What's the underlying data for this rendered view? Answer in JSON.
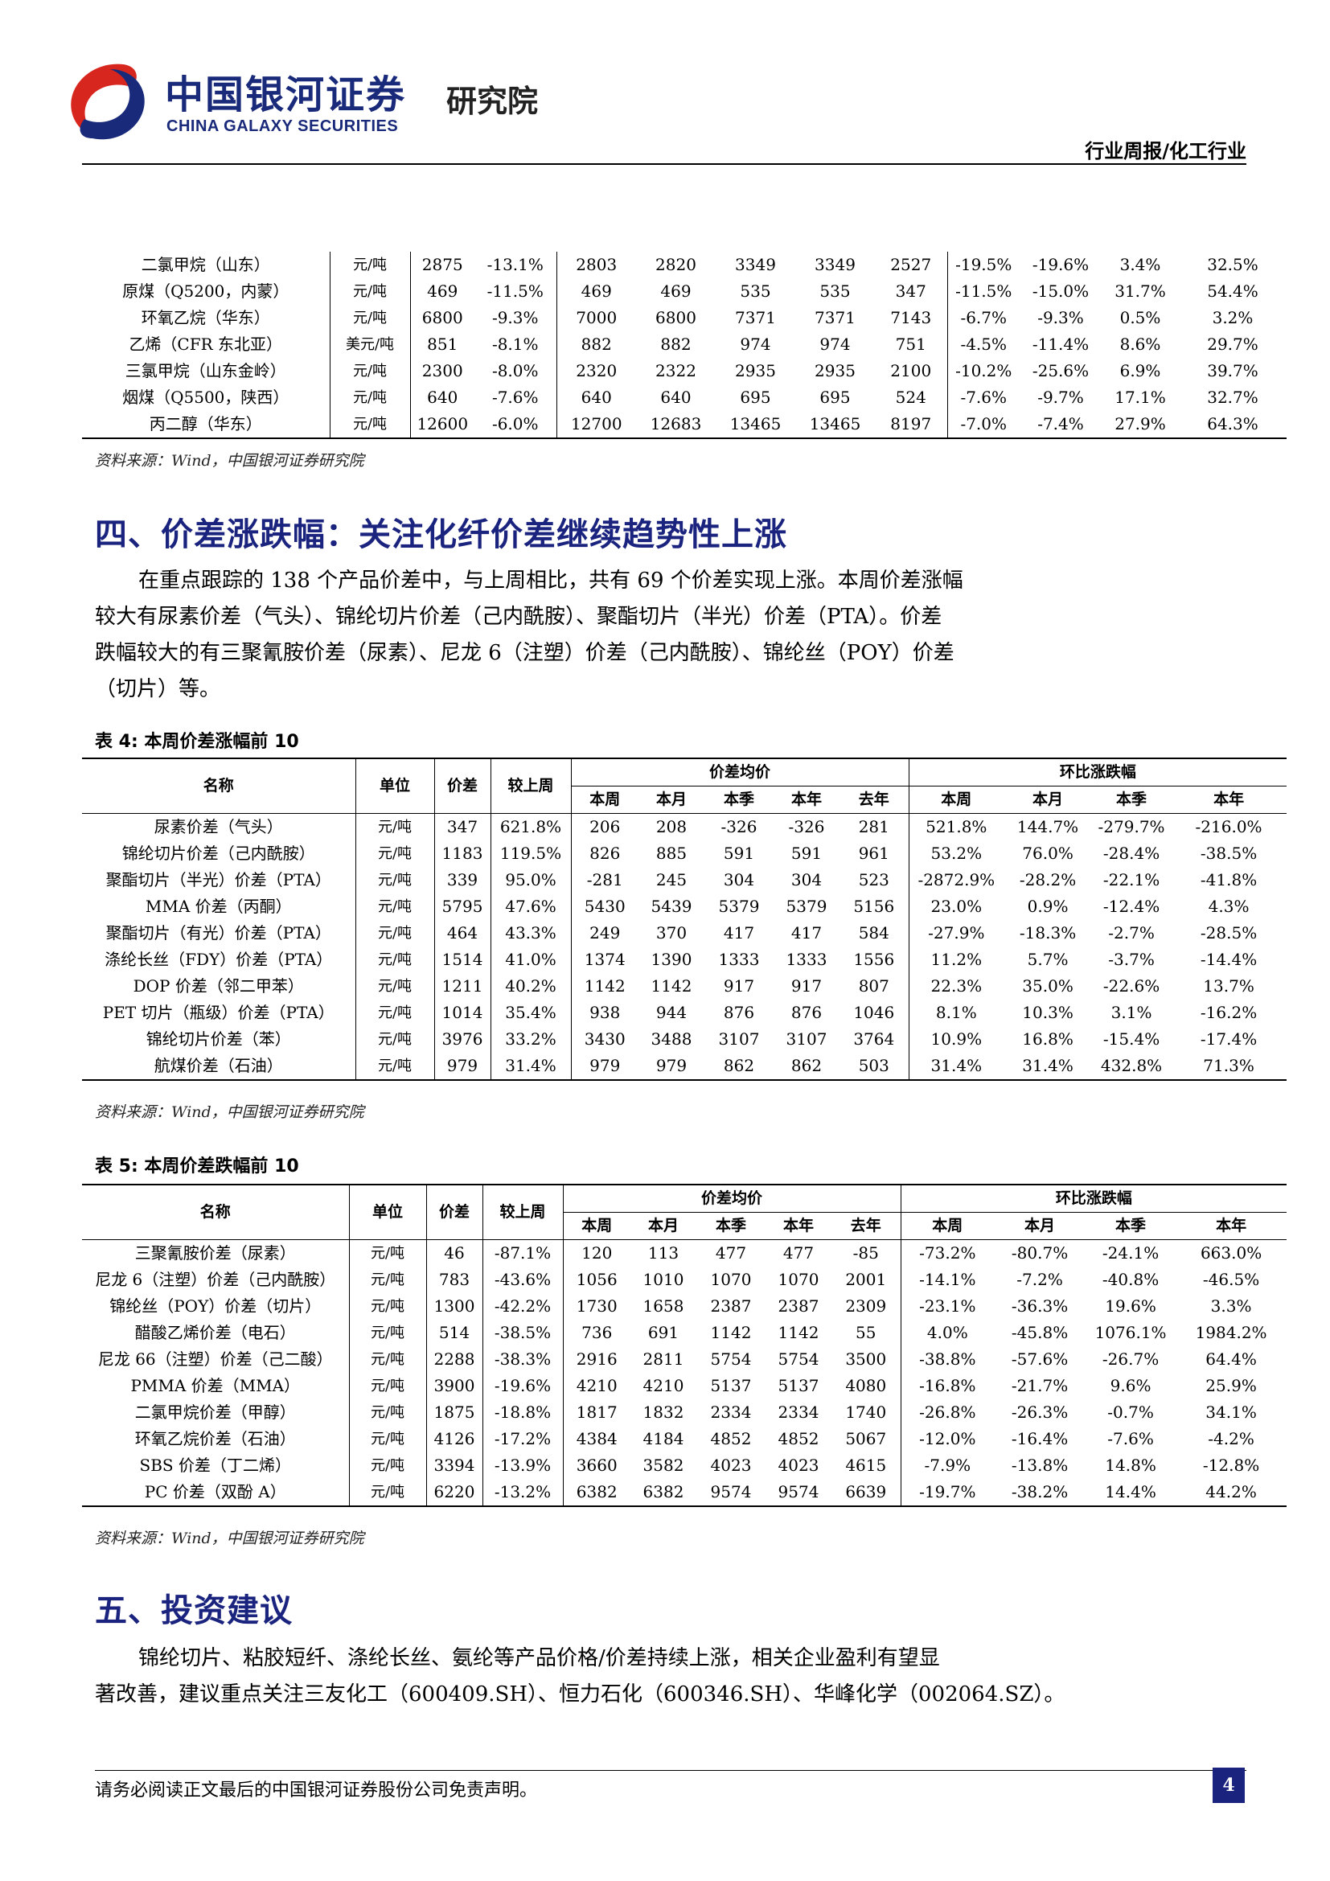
{
  "header": {
    "logo_cn": "中国银河证券",
    "logo_en": "CHINA GALAXY SECURITIES",
    "logo_institute": "研究院",
    "report_tag": "行业周报/化工行业"
  },
  "colors": {
    "brand_blue": "#1a237e",
    "logo_red": "#d7261e"
  },
  "table_top": {
    "rows": [
      [
        "二氯甲烷（山东）",
        "元/吨",
        "2875",
        "-13.1%",
        "2803",
        "2820",
        "3349",
        "3349",
        "2527",
        "-19.5%",
        "-19.6%",
        "3.4%",
        "32.5%"
      ],
      [
        "原煤（Q5200，内蒙）",
        "元/吨",
        "469",
        "-11.5%",
        "469",
        "469",
        "535",
        "535",
        "347",
        "-11.5%",
        "-15.0%",
        "31.7%",
        "54.4%"
      ],
      [
        "环氧乙烷（华东）",
        "元/吨",
        "6800",
        "-9.3%",
        "7000",
        "6800",
        "7371",
        "7371",
        "7143",
        "-6.7%",
        "-9.3%",
        "0.5%",
        "3.2%"
      ],
      [
        "乙烯（CFR 东北亚）",
        "美元/吨",
        "851",
        "-8.1%",
        "882",
        "882",
        "974",
        "974",
        "751",
        "-4.5%",
        "-11.4%",
        "8.6%",
        "29.7%"
      ],
      [
        "三氯甲烷（山东金岭）",
        "元/吨",
        "2300",
        "-8.0%",
        "2320",
        "2322",
        "2935",
        "2935",
        "2100",
        "-10.2%",
        "-25.6%",
        "6.9%",
        "39.7%"
      ],
      [
        "烟煤（Q5500，陕西）",
        "元/吨",
        "640",
        "-7.6%",
        "640",
        "640",
        "695",
        "695",
        "524",
        "-7.6%",
        "-9.7%",
        "17.1%",
        "32.7%"
      ],
      [
        "丙二醇（华东）",
        "元/吨",
        "12600",
        "-6.0%",
        "12700",
        "12683",
        "13465",
        "13465",
        "8197",
        "-7.0%",
        "-7.4%",
        "27.9%",
        "64.3%"
      ]
    ],
    "source": "资料来源：Wind，中国银河证券研究院"
  },
  "section4": {
    "title": "四、价差涨跌幅：关注化纤价差继续趋势性上涨",
    "para_lines": [
      "在重点跟踪的 138 个产品价差中，与上周相比，共有 69 个价差实现上涨。本周价差涨幅",
      "较大有尿素价差（气头）、锦纶切片价差（己内酰胺）、聚酯切片（半光）价差（PTA）。价差",
      "跌幅较大的有三聚氰胺价差（尿素）、尼龙 6（注塑）价差（己内酰胺）、锦纶丝（POY）价差",
      "（切片）等。"
    ]
  },
  "table4": {
    "caption": "表 4:  本周价差涨幅前 10",
    "headers": {
      "name": "名称",
      "unit": "单位",
      "spread": "价差",
      "vs_last_week": "较上周",
      "group_avg": "价差均价",
      "group_change": "环比涨跌幅",
      "avg_sub": [
        "本周",
        "本月",
        "本季",
        "本年",
        "去年"
      ],
      "chg_sub": [
        "本周",
        "本月",
        "本季",
        "本年"
      ]
    },
    "rows": [
      [
        "尿素价差（气头）",
        "元/吨",
        "347",
        "621.8%",
        "206",
        "208",
        "-326",
        "-326",
        "281",
        "521.8%",
        "144.7%",
        "-279.7%",
        "-216.0%"
      ],
      [
        "锦纶切片价差（己内酰胺）",
        "元/吨",
        "1183",
        "119.5%",
        "826",
        "885",
        "591",
        "591",
        "961",
        "53.2%",
        "76.0%",
        "-28.4%",
        "-38.5%"
      ],
      [
        "聚酯切片（半光）价差（PTA）",
        "元/吨",
        "339",
        "95.0%",
        "-281",
        "245",
        "304",
        "304",
        "523",
        "-2872.9%",
        "-28.2%",
        "-22.1%",
        "-41.8%"
      ],
      [
        "MMA 价差（丙酮）",
        "元/吨",
        "5795",
        "47.6%",
        "5430",
        "5439",
        "5379",
        "5379",
        "5156",
        "23.0%",
        "0.9%",
        "-12.4%",
        "4.3%"
      ],
      [
        "聚酯切片（有光）价差（PTA）",
        "元/吨",
        "464",
        "43.3%",
        "249",
        "370",
        "417",
        "417",
        "584",
        "-27.9%",
        "-18.3%",
        "-2.7%",
        "-28.5%"
      ],
      [
        "涤纶长丝（FDY）价差（PTA）",
        "元/吨",
        "1514",
        "41.0%",
        "1374",
        "1390",
        "1333",
        "1333",
        "1556",
        "11.2%",
        "5.7%",
        "-3.7%",
        "-14.4%"
      ],
      [
        "DOP 价差（邻二甲苯）",
        "元/吨",
        "1211",
        "40.2%",
        "1142",
        "1142",
        "917",
        "917",
        "807",
        "22.3%",
        "35.0%",
        "-22.6%",
        "13.7%"
      ],
      [
        "PET 切片（瓶级）价差（PTA）",
        "元/吨",
        "1014",
        "35.4%",
        "938",
        "944",
        "876",
        "876",
        "1046",
        "8.1%",
        "10.3%",
        "3.1%",
        "-16.2%"
      ],
      [
        "锦纶切片价差（苯）",
        "元/吨",
        "3976",
        "33.2%",
        "3430",
        "3488",
        "3107",
        "3107",
        "3764",
        "10.9%",
        "16.8%",
        "-15.4%",
        "-17.4%"
      ],
      [
        "航煤价差（石油）",
        "元/吨",
        "979",
        "31.4%",
        "979",
        "979",
        "862",
        "862",
        "503",
        "31.4%",
        "31.4%",
        "432.8%",
        "71.3%"
      ]
    ],
    "source": "资料来源：Wind，中国银河证券研究院"
  },
  "table5": {
    "caption": "表 5:  本周价差跌幅前 10",
    "headers": {
      "name": "名称",
      "unit": "单位",
      "spread": "价差",
      "vs_last_week": "较上周",
      "group_avg": "价差均价",
      "group_change": "环比涨跌幅",
      "avg_sub": [
        "本周",
        "本月",
        "本季",
        "本年",
        "去年"
      ],
      "chg_sub": [
        "本周",
        "本月",
        "本季",
        "本年"
      ]
    },
    "rows": [
      [
        "三聚氰胺价差（尿素）",
        "元/吨",
        "46",
        "-87.1%",
        "120",
        "113",
        "477",
        "477",
        "-85",
        "-73.2%",
        "-80.7%",
        "-24.1%",
        "663.0%"
      ],
      [
        "尼龙 6（注塑）价差（己内酰胺）",
        "元/吨",
        "783",
        "-43.6%",
        "1056",
        "1010",
        "1070",
        "1070",
        "2001",
        "-14.1%",
        "-7.2%",
        "-40.8%",
        "-46.5%"
      ],
      [
        "锦纶丝（POY）价差（切片）",
        "元/吨",
        "1300",
        "-42.2%",
        "1730",
        "1658",
        "2387",
        "2387",
        "2309",
        "-23.1%",
        "-36.3%",
        "19.6%",
        "3.3%"
      ],
      [
        "醋酸乙烯价差（电石）",
        "元/吨",
        "514",
        "-38.5%",
        "736",
        "691",
        "1142",
        "1142",
        "55",
        "4.0%",
        "-45.8%",
        "1076.1%",
        "1984.2%"
      ],
      [
        "尼龙 66（注塑）价差（己二酸）",
        "元/吨",
        "2288",
        "-38.3%",
        "2916",
        "2811",
        "5754",
        "5754",
        "3500",
        "-38.8%",
        "-57.6%",
        "-26.7%",
        "64.4%"
      ],
      [
        "PMMA 价差（MMA）",
        "元/吨",
        "3900",
        "-19.6%",
        "4210",
        "4210",
        "5137",
        "5137",
        "4080",
        "-16.8%",
        "-21.7%",
        "9.6%",
        "25.9%"
      ],
      [
        "二氯甲烷价差（甲醇）",
        "元/吨",
        "1875",
        "-18.8%",
        "1817",
        "1832",
        "2334",
        "2334",
        "1740",
        "-26.8%",
        "-26.3%",
        "-0.7%",
        "34.1%"
      ],
      [
        "环氧乙烷价差（石油）",
        "元/吨",
        "4126",
        "-17.2%",
        "4384",
        "4184",
        "4852",
        "4852",
        "5067",
        "-12.0%",
        "-16.4%",
        "-7.6%",
        "-4.2%"
      ],
      [
        "SBS 价差（丁二烯）",
        "元/吨",
        "3394",
        "-13.9%",
        "3660",
        "3582",
        "4023",
        "4023",
        "4615",
        "-7.9%",
        "-13.8%",
        "14.8%",
        "-12.8%"
      ],
      [
        "PC 价差（双酚 A）",
        "元/吨",
        "6220",
        "-13.2%",
        "6382",
        "6382",
        "9574",
        "9574",
        "6639",
        "-19.7%",
        "-38.2%",
        "14.4%",
        "44.2%"
      ]
    ],
    "source": "资料来源：Wind，中国银河证券研究院"
  },
  "section5": {
    "title": "五、投资建议",
    "para_lines": [
      "锦纶切片、粘胶短纤、涤纶长丝、氨纶等产品价格/价差持续上涨，相关企业盈利有望显",
      "著改善，建议重点关注三友化工（600409.SH）、恒力石化（600346.SH）、华峰化学（002064.SZ）。"
    ]
  },
  "footer": {
    "disclaimer": "请务必阅读正文最后的中国银河证券股份公司免责声明。",
    "page_number": "4"
  }
}
